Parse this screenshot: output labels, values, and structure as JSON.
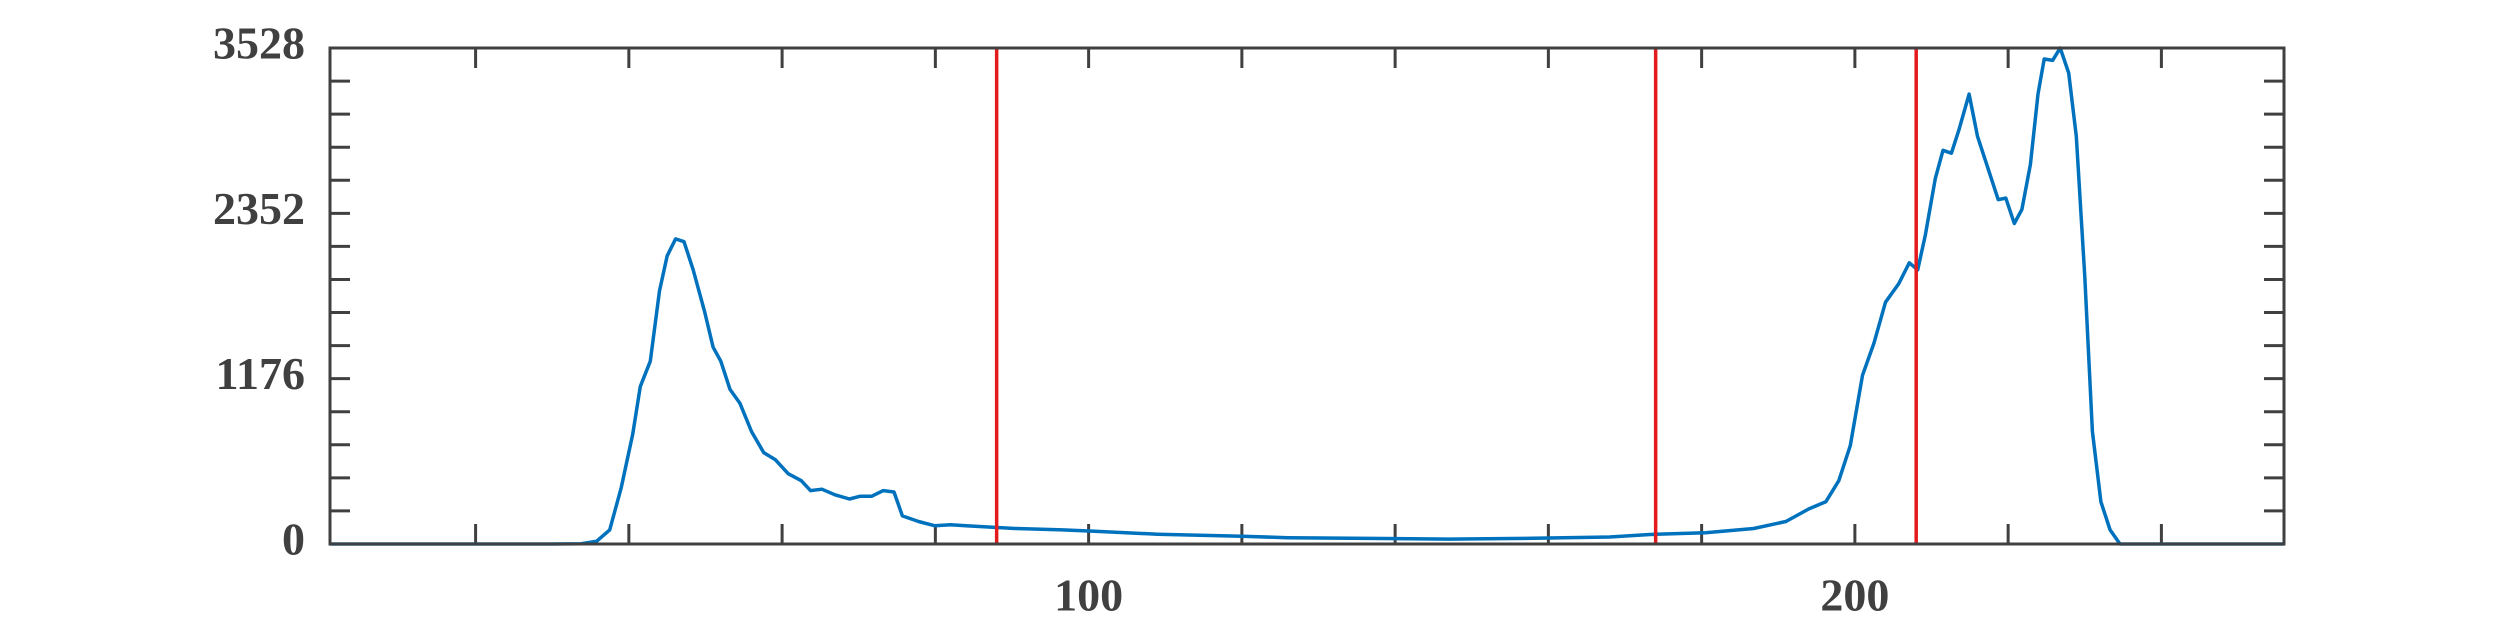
{
  "chart_data": {
    "type": "line",
    "x": [
      1,
      10,
      20,
      30,
      33.8,
      35.8,
      37.5,
      39,
      40.5,
      41.5,
      42.8,
      44,
      45,
      46.1,
      47.2,
      48.4,
      49.9,
      51,
      52,
      53.2,
      54.5,
      56,
      57.6,
      59.1,
      60.8,
      62.5,
      63.7,
      65.2,
      66.9,
      68.8,
      70.2,
      71.7,
      73.2,
      74.6,
      75.7,
      77.8,
      79.9,
      82,
      84,
      87.2,
      90.4,
      96.6,
      100.8,
      109,
      120,
      126,
      136.5,
      147,
      157,
      168,
      174,
      180.5,
      186.8,
      191,
      194,
      196.2,
      197.9,
      199.4,
      201,
      202.5,
      204,
      205.7,
      207.1,
      208.2,
      209.2,
      210.5,
      211.5,
      212.6,
      213.6,
      214.9,
      216,
      217.2,
      218.7,
      219.7,
      220.8,
      221.8,
      222.9,
      223.9,
      224.7,
      225.8,
      226.8,
      227.9,
      228.9,
      230,
      231,
      232.1,
      233.3,
      234.6,
      245,
      256
    ],
    "series": [
      {
        "color": "#0072bd",
        "values": [
          0,
          0,
          0,
          0,
          2,
          20,
          100,
          400,
          780,
          1120,
          1300,
          1800,
          2050,
          2170,
          2150,
          1950,
          1650,
          1400,
          1300,
          1100,
          1000,
          800,
          650,
          600,
          500,
          450,
          380,
          390,
          350,
          320,
          340,
          340,
          380,
          370,
          200,
          160,
          130,
          137,
          130,
          120,
          110,
          100,
          90,
          70,
          55,
          45,
          40,
          35,
          40,
          50,
          70,
          80,
          110,
          160,
          250,
          300,
          450,
          700,
          1200,
          1430,
          1720,
          1850,
          2000,
          1950,
          2200,
          2600,
          2800,
          2780,
          2950,
          3200,
          2900,
          2700,
          2450,
          2460,
          2280,
          2380,
          2700,
          3200,
          3450,
          3440,
          3528,
          3350,
          2900,
          1900,
          800,
          300,
          100,
          0,
          0,
          0
        ]
      }
    ],
    "xlim": [
      1,
      256
    ],
    "xticks": [
      100,
      200
    ],
    "xminor_ticks": [
      20,
      40,
      60,
      80,
      120,
      140,
      160,
      180,
      220,
      240
    ],
    "ylim": [
      0,
      3528
    ],
    "yticks": [
      0,
      1176,
      2352,
      3528
    ],
    "yminor_ticks": [
      235.2,
      470.4,
      705.6,
      940.8,
      1411.2,
      1646.4,
      1881.6,
      2116.8,
      2587.2,
      2822.4,
      3057.6,
      3292.8
    ],
    "vlines": [
      88,
      174,
      208
    ],
    "vline_color": "#e41a1c"
  }
}
